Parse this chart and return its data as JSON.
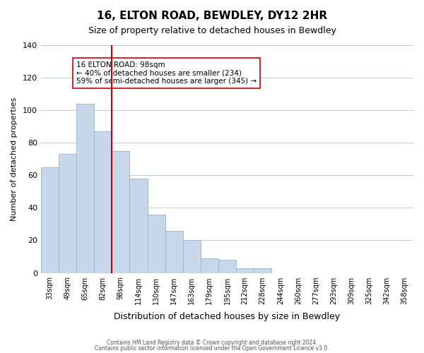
{
  "title": "16, ELTON ROAD, BEWDLEY, DY12 2HR",
  "subtitle": "Size of property relative to detached houses in Bewdley",
  "xlabel": "Distribution of detached houses by size in Bewdley",
  "ylabel": "Number of detached properties",
  "footer_line1": "Contains HM Land Registry data © Crown copyright and database right 2024.",
  "footer_line2": "Contains public sector information licensed under the Open Government Licence v3.0.",
  "bin_labels": [
    "33sqm",
    "49sqm",
    "65sqm",
    "82sqm",
    "98sqm",
    "114sqm",
    "130sqm",
    "147sqm",
    "163sqm",
    "179sqm",
    "195sqm",
    "212sqm",
    "228sqm",
    "244sqm",
    "260sqm",
    "277sqm",
    "293sqm",
    "309sqm",
    "325sqm",
    "342sqm",
    "358sqm"
  ],
  "bar_heights": [
    65,
    73,
    104,
    87,
    75,
    58,
    36,
    26,
    20,
    9,
    8,
    3,
    3,
    0,
    0,
    0,
    0,
    0,
    0,
    0
  ],
  "bar_color": "#c8d8e8",
  "bar_edge_color": "#a0b8d0",
  "vline_x": 4,
  "vline_color": "#cc0000",
  "annotation_title": "16 ELTON ROAD: 98sqm",
  "annotation_line1": "← 40% of detached houses are smaller (234)",
  "annotation_line2": "59% of semi-detached houses are larger (345) →",
  "annotation_box_color": "#ffffff",
  "annotation_box_edge": "#cc0000",
  "ylim": [
    0,
    140
  ],
  "xlim_left": -0.5,
  "xlim_right": 20.5
}
